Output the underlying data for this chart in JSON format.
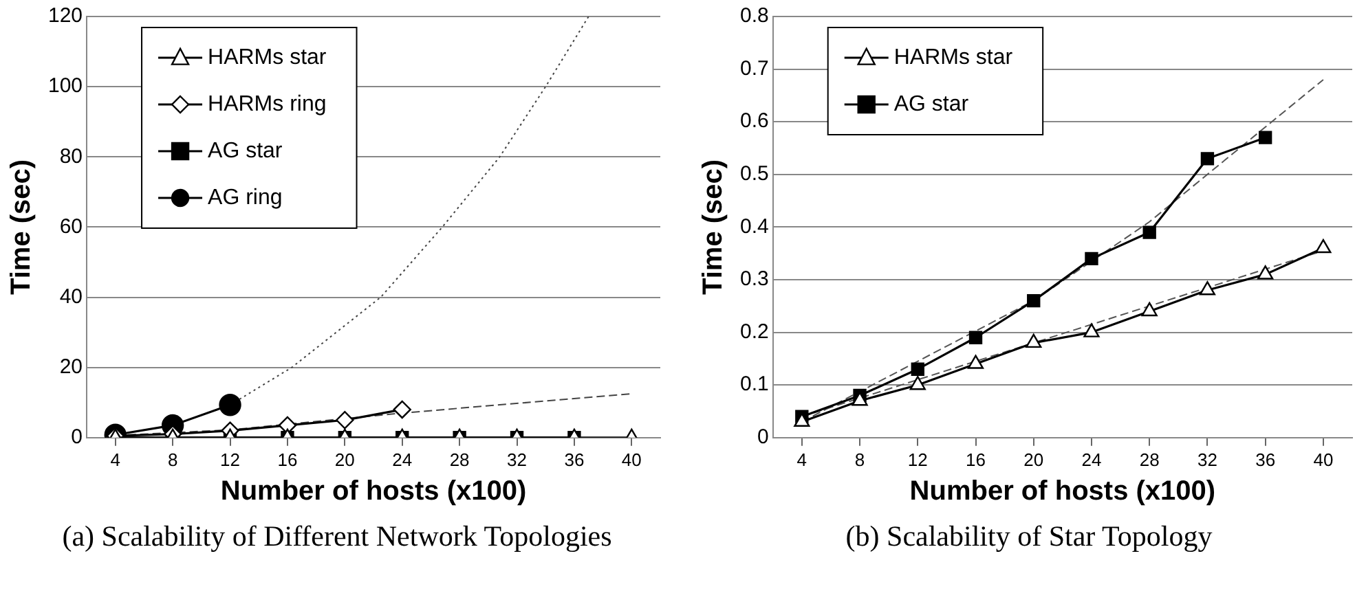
{
  "chart_data": [
    {
      "type": "line",
      "xlabel": "Number of hosts (x100)",
      "ylabel": "Time (sec)",
      "x": [
        4,
        8,
        12,
        16,
        20,
        24,
        28,
        32,
        36,
        40
      ],
      "xlim": [
        2,
        42
      ],
      "xticks": [
        4,
        8,
        12,
        16,
        20,
        24,
        28,
        32,
        36,
        40
      ],
      "ylim": [
        0,
        120
      ],
      "yticks": [
        0,
        20,
        40,
        60,
        80,
        100,
        120
      ],
      "grid": "y",
      "legend": "top left",
      "annotations": [
        "(a) Scalability of Different Network Topologies"
      ],
      "series": [
        {
          "name": "HARMs star",
          "color": "#000000",
          "marker": "triangle",
          "values": [
            0,
            0,
            0,
            0,
            0,
            0,
            0,
            0,
            0,
            0
          ]
        },
        {
          "name": "HARMs ring",
          "color": "#000000",
          "marker": "diamond",
          "values": [
            0.5,
            1,
            2,
            3.5,
            5,
            8,
            null,
            null,
            null,
            null
          ]
        },
        {
          "name": "AG star",
          "color": "#000000",
          "marker": "square",
          "values": [
            0,
            0,
            0,
            0,
            0,
            0,
            0,
            0,
            0,
            null
          ]
        },
        {
          "name": "AG ring",
          "color": "#000000",
          "marker": "circle",
          "values": [
            0.8,
            3.5,
            9.3,
            null,
            null,
            null,
            null,
            null,
            null,
            null
          ]
        },
        {
          "color": "#444444",
          "marker": "none",
          "line_style": "dotted",
          "x": [
            12,
            16.3,
            22.5,
            26.8,
            30.8,
            34,
            37
          ],
          "values": [
            9.3,
            20,
            40,
            60,
            80,
            100,
            120
          ]
        },
        {
          "color": "#444444",
          "marker": "none",
          "line_style": "dashed",
          "x": [
            4,
            12,
            24,
            40
          ],
          "values": [
            0.6,
            2.2,
            7,
            12.5
          ]
        }
      ]
    },
    {
      "type": "line",
      "xlabel": "Number of hosts (x100)",
      "ylabel": "Time (sec)",
      "x": [
        4,
        8,
        12,
        16,
        20,
        24,
        28,
        32,
        36,
        40
      ],
      "xlim": [
        2,
        42
      ],
      "xticks": [
        4,
        8,
        12,
        16,
        20,
        24,
        28,
        32,
        36,
        40
      ],
      "ylim": [
        0,
        0.8
      ],
      "yticks": [
        0,
        0.1,
        0.2,
        0.3,
        0.4,
        0.5,
        0.6,
        0.7,
        0.8
      ],
      "grid": "y",
      "legend": "top left",
      "annotations": [
        "(b) Scalability of Star Topology"
      ],
      "series": [
        {
          "name": "HARMs star",
          "color": "#000000",
          "marker": "triangle",
          "values": [
            0.03,
            0.07,
            0.1,
            0.14,
            0.18,
            0.2,
            0.24,
            0.28,
            0.31,
            0.36
          ]
        },
        {
          "name": "AG star",
          "color": "#000000",
          "marker": "square",
          "values": [
            0.04,
            0.08,
            0.13,
            0.19,
            0.26,
            0.34,
            0.39,
            0.53,
            0.57,
            null
          ]
        },
        {
          "color": "#555555",
          "marker": "none",
          "line_style": "dashed",
          "x": [
            4,
            20,
            28,
            40
          ],
          "values": [
            0.03,
            0.26,
            0.41,
            0.68
          ]
        },
        {
          "color": "#555555",
          "marker": "none",
          "line_style": "dashed",
          "x": [
            4,
            40
          ],
          "values": [
            0.04,
            0.355
          ]
        }
      ]
    }
  ]
}
